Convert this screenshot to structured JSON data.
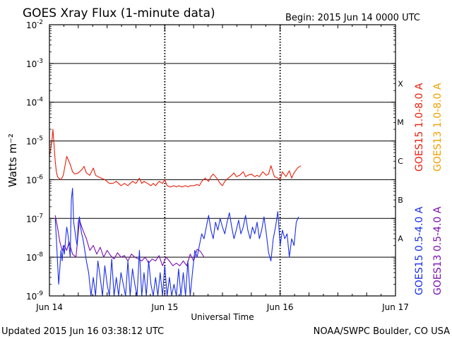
{
  "page": {
    "title": "GOES Xray Flux (1-minute data)",
    "begin": "Begin:  2015 Jun 14 0000 UTC",
    "updated": "Updated 2015 Jun 16 03:38:12 UTC",
    "credit": "NOAA/SWPC Boulder, CO USA"
  },
  "chart_data": {
    "type": "line",
    "title": "GOES Xray Flux (1-minute data)",
    "xlabel": "Universal Time",
    "ylabel": "Watts m⁻²",
    "yscale": "log",
    "ylim": [
      1e-09,
      0.01
    ],
    "xlim_days": [
      0,
      3
    ],
    "x_tick_labels": [
      "Jun 14",
      "Jun 15",
      "Jun 16",
      "Jun 17"
    ],
    "y_tick_labels": [
      {
        "exp": -2,
        "label": "10",
        "sup": "-2"
      },
      {
        "exp": -3,
        "label": "10",
        "sup": "-3"
      },
      {
        "exp": -4,
        "label": "10",
        "sup": "-4"
      },
      {
        "exp": -5,
        "label": "10",
        "sup": "-5"
      },
      {
        "exp": -6,
        "label": "10",
        "sup": "-6"
      },
      {
        "exp": -7,
        "label": "10",
        "sup": "-7"
      },
      {
        "exp": -8,
        "label": "10",
        "sup": "-8"
      },
      {
        "exp": -9,
        "label": "10",
        "sup": "-9"
      }
    ],
    "flare_classes": [
      {
        "label": "X",
        "exp": -4
      },
      {
        "label": "M",
        "exp": -5
      },
      {
        "label": "C",
        "exp": -6
      },
      {
        "label": "B",
        "exp": -7
      },
      {
        "label": "A",
        "exp": -8
      }
    ],
    "legend": [
      {
        "label": "GOES15 1.0-8.0 A",
        "color": "#e8200c"
      },
      {
        "label": "GOES13 1.0-8.0 A",
        "color": "#f0a000"
      },
      {
        "label": "GOES15 0.5-4.0 A",
        "color": "#1a2ee8"
      },
      {
        "label": "GOES13 0.5-4.0 A",
        "color": "#7a10b0"
      }
    ],
    "series": [
      {
        "name": "GOES15 1.0-8.0 A",
        "color": "#e8200c",
        "x_days": [
          0.0,
          0.02,
          0.03,
          0.04,
          0.05,
          0.06,
          0.07,
          0.08,
          0.1,
          0.12,
          0.15,
          0.18,
          0.2,
          0.22,
          0.25,
          0.28,
          0.3,
          0.32,
          0.35,
          0.38,
          0.4,
          0.42,
          0.45,
          0.48,
          0.5,
          0.52,
          0.55,
          0.58,
          0.6,
          0.62,
          0.65,
          0.68,
          0.7,
          0.72,
          0.75,
          0.78,
          0.8,
          0.82,
          0.85,
          0.88,
          0.9,
          0.92,
          0.95,
          0.98,
          1.0,
          1.02,
          1.05,
          1.08,
          1.1,
          1.12,
          1.15,
          1.18,
          1.2,
          1.22,
          1.25,
          1.28,
          1.3,
          1.32,
          1.35,
          1.38,
          1.4,
          1.42,
          1.45,
          1.48,
          1.5,
          1.52,
          1.55,
          1.58,
          1.6,
          1.62,
          1.65,
          1.68,
          1.7,
          1.72,
          1.75,
          1.78,
          1.8,
          1.82,
          1.85,
          1.88,
          1.9,
          1.92,
          1.95,
          1.98,
          2.0,
          2.02,
          2.05,
          2.08,
          2.1,
          2.12,
          2.15,
          2.18
        ],
        "values": [
          4e-06,
          9e-06,
          2e-05,
          8e-06,
          3e-06,
          1.6e-06,
          1.2e-06,
          1.1e-06,
          1e-06,
          1.3e-06,
          4e-06,
          2.5e-06,
          1.6e-06,
          1.4e-06,
          1.5e-06,
          1.8e-06,
          2.2e-06,
          1.5e-06,
          1.3e-06,
          2e-06,
          1.3e-06,
          1.2e-06,
          1.1e-06,
          1e-06,
          9e-07,
          8e-07,
          8e-07,
          9e-07,
          8e-07,
          7e-07,
          8e-07,
          7e-07,
          8e-07,
          9e-07,
          8e-07,
          1.1e-06,
          8e-07,
          9e-07,
          8e-07,
          7e-07,
          8e-07,
          7e-07,
          9e-07,
          8e-07,
          1e-06,
          7e-07,
          6.5e-07,
          7e-07,
          6.5e-07,
          7e-07,
          6.5e-07,
          7e-07,
          6.5e-07,
          7e-07,
          7e-07,
          7.5e-07,
          7e-07,
          9e-07,
          1.1e-06,
          9e-07,
          1.2e-06,
          1.4e-06,
          1.1e-06,
          8e-07,
          7e-07,
          9e-07,
          1.1e-06,
          1.3e-06,
          1.5e-06,
          1.2e-06,
          1.3e-06,
          1.6e-06,
          1.2e-06,
          1.3e-06,
          1.4e-06,
          1.2e-06,
          1.3e-06,
          1.2e-06,
          1.6e-06,
          1.3e-06,
          1.4e-06,
          2.3e-06,
          1.2e-06,
          1.1e-06,
          1e-06,
          1.6e-06,
          1.2e-06,
          1.7e-06,
          1.1e-06,
          1.5e-06,
          2e-06,
          2.3e-06
        ]
      },
      {
        "name": "GOES13 0.5-4.0 A",
        "color": "#7a10b0",
        "x_days": [
          0.05,
          0.07,
          0.09,
          0.11,
          0.13,
          0.15,
          0.17,
          0.2,
          0.23,
          0.26,
          0.29,
          0.32,
          0.35,
          0.38,
          0.41,
          0.44,
          0.47,
          0.5,
          0.53,
          0.56,
          0.59,
          0.62,
          0.65,
          0.68,
          0.71,
          0.74,
          0.77,
          0.8,
          0.83,
          0.86,
          0.89,
          0.92,
          0.95,
          0.98,
          1.01,
          1.04,
          1.07,
          1.1,
          1.13,
          1.16,
          1.19,
          1.22,
          1.25,
          1.28,
          1.31,
          1.34
        ],
        "values": [
          1.2e-07,
          6e-08,
          2.5e-08,
          1.5e-08,
          2e-08,
          1.5e-08,
          2.5e-08,
          1.2e-08,
          1e-08,
          9e-08,
          5e-08,
          3e-08,
          1.5e-08,
          2e-08,
          1.2e-08,
          1.8e-08,
          1e-08,
          1.5e-08,
          1.1e-08,
          9e-09,
          1.3e-08,
          1e-08,
          1.1e-08,
          8e-09,
          1.2e-08,
          1e-08,
          9e-09,
          8e-09,
          1e-08,
          7e-09,
          9e-09,
          8e-09,
          1.1e-08,
          6e-09,
          1e-08,
          8e-09,
          6e-09,
          7e-09,
          6e-09,
          8e-09,
          6e-09,
          1.2e-08,
          8e-09,
          1.6e-08,
          1.4e-08,
          1e-08
        ]
      },
      {
        "name": "GOES15 0.5-4.0 A",
        "color": "#1a2ee8",
        "x_days": [
          0.05,
          0.06,
          0.07,
          0.08,
          0.09,
          0.1,
          0.11,
          0.12,
          0.13,
          0.14,
          0.15,
          0.16,
          0.17,
          0.18,
          0.19,
          0.2,
          0.21,
          0.22,
          0.23,
          0.24,
          0.25,
          0.26,
          0.27,
          0.28,
          0.29,
          0.3,
          0.32,
          0.34,
          0.36,
          0.38,
          0.4,
          0.42,
          0.44,
          0.46,
          0.48,
          0.5,
          0.52,
          0.54,
          0.56,
          0.58,
          0.6,
          0.62,
          0.64,
          0.66,
          0.68,
          0.7,
          0.72,
          0.74,
          0.76,
          0.78,
          0.8,
          0.82,
          0.84,
          0.86,
          0.88,
          0.9,
          0.92,
          0.94,
          0.96,
          0.98,
          1.0,
          1.02,
          1.04,
          1.06,
          1.08,
          1.1,
          1.12,
          1.14,
          1.16,
          1.18,
          1.2,
          1.22,
          1.24,
          1.26,
          1.28,
          1.3,
          1.32,
          1.34,
          1.36,
          1.38,
          1.4,
          1.42,
          1.44,
          1.46,
          1.48,
          1.5,
          1.52,
          1.54,
          1.56,
          1.58,
          1.6,
          1.62,
          1.64,
          1.66,
          1.68,
          1.7,
          1.72,
          1.74,
          1.76,
          1.78,
          1.8,
          1.82,
          1.84,
          1.86,
          1.88,
          1.9,
          1.92,
          1.94,
          1.96,
          1.98,
          2.0,
          2.02,
          2.04,
          2.06,
          2.08,
          2.1,
          2.12,
          2.14,
          2.16
        ],
        "values": [
          1e-07,
          3e-08,
          8e-09,
          2e-09,
          5e-09,
          1.5e-08,
          8e-09,
          2e-08,
          1.2e-08,
          3e-08,
          6e-08,
          4e-08,
          2e-08,
          1e-08,
          3e-07,
          6e-07,
          8e-08,
          5e-08,
          3e-08,
          2e-08,
          8e-08,
          1.1e-07,
          6e-08,
          4e-08,
          3e-08,
          2e-08,
          8e-09,
          4e-09,
          1e-09,
          3e-09,
          1e-09,
          8e-09,
          3e-09,
          1e-09,
          6e-09,
          2e-09,
          1e-09,
          9e-09,
          1e-09,
          3e-09,
          1e-09,
          4e-09,
          2e-09,
          1e-09,
          8e-09,
          1e-09,
          5e-09,
          2e-09,
          1e-09,
          1.5e-08,
          1e-09,
          4e-09,
          1e-09,
          8e-09,
          2e-09,
          1e-09,
          3e-09,
          1e-09,
          4e-09,
          1e-09,
          6e-09,
          1e-09,
          3e-09,
          1e-09,
          2e-09,
          1e-09,
          5e-09,
          1e-09,
          4e-09,
          1e-09,
          8e-09,
          1e-09,
          4e-09,
          1.5e-08,
          1e-08,
          2e-08,
          4e-08,
          3e-08,
          6e-08,
          1.2e-07,
          5e-08,
          3e-08,
          8e-08,
          5e-08,
          1e-07,
          6e-08,
          4e-08,
          8e-08,
          1.4e-07,
          6e-08,
          3e-08,
          5e-08,
          9e-08,
          4e-08,
          6e-08,
          1.2e-07,
          5e-08,
          3e-08,
          6e-08,
          4e-08,
          8e-08,
          3e-08,
          5e-08,
          1.1e-07,
          4e-08,
          1.3e-08,
          8e-09,
          3e-08,
          6e-08,
          1.5e-07,
          2e-08,
          5e-08,
          3e-08,
          4e-08,
          1e-08,
          3e-08,
          2e-08,
          8e-08,
          1.1e-07
        ]
      }
    ]
  }
}
